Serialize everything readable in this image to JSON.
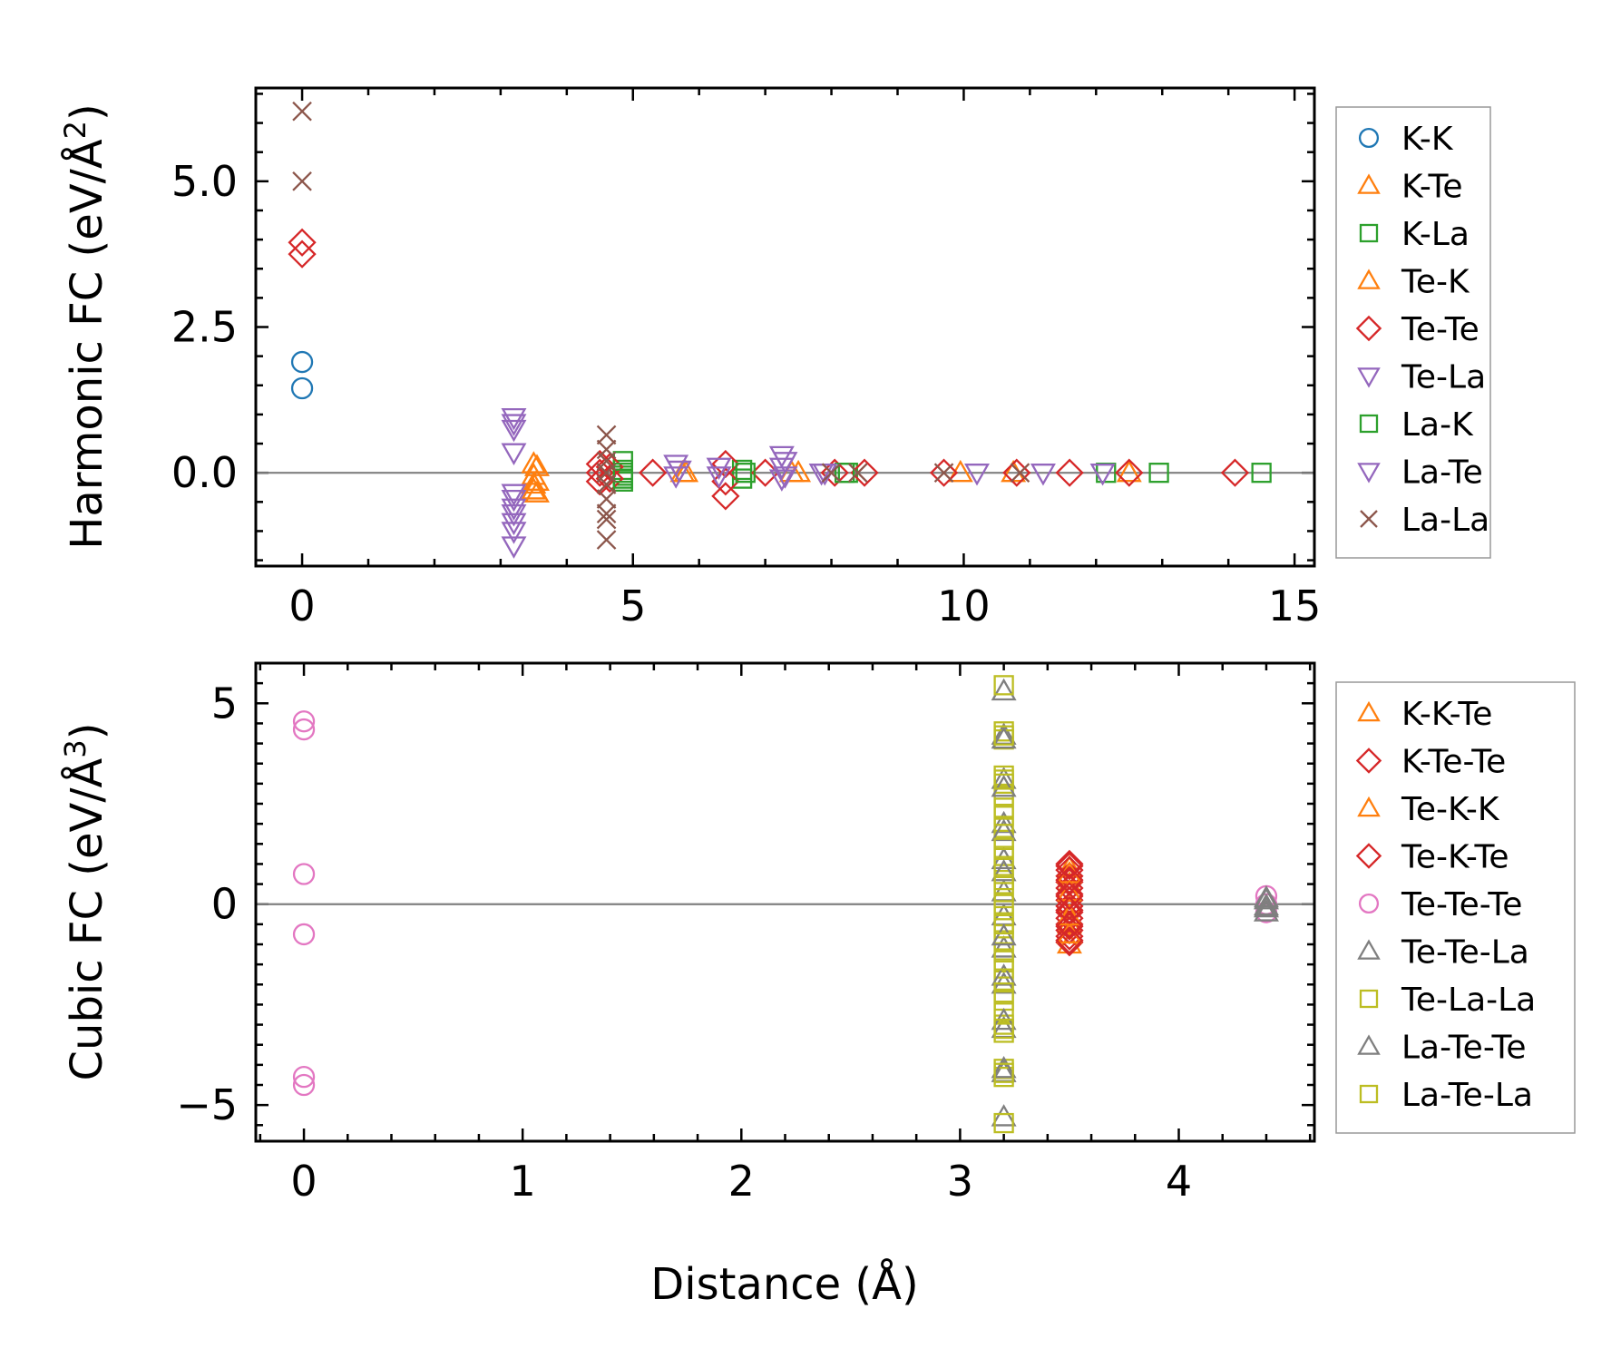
{
  "figure": {
    "width": 1787,
    "height": 1497
  },
  "chart_data": [
    {
      "type": "scatter",
      "title": "",
      "xlabel": "",
      "ylabel": "Harmonic FC (eV/Å²)",
      "ylabel_parts": [
        "Harmonic FC (eV/Å",
        "2",
        ")"
      ],
      "xlim": [
        -0.7,
        15.3
      ],
      "ylim": [
        -1.6,
        6.6
      ],
      "xticks": [
        0,
        5,
        10,
        15
      ],
      "xtick_labels": [
        "0",
        "5",
        "10",
        "15"
      ],
      "yticks": [
        0.0,
        2.5,
        5.0
      ],
      "ytick_labels": [
        "0.0",
        "2.5",
        "5.0"
      ],
      "hline": 0,
      "legend": "outside-right",
      "series": [
        {
          "name": "K-K",
          "marker": "circle",
          "color": "#1f77b4",
          "points": [
            [
              0,
              1.9
            ],
            [
              0,
              1.45
            ]
          ]
        },
        {
          "name": "K-Te",
          "marker": "triangle-up",
          "color": "#ff7f0e",
          "points": [
            [
              3.5,
              0.15
            ],
            [
              3.5,
              -0.05
            ],
            [
              3.5,
              -0.2
            ],
            [
              3.5,
              -0.3
            ],
            [
              5.8,
              0.0
            ],
            [
              7.4,
              0.0
            ],
            [
              9.95,
              0.0
            ],
            [
              12.5,
              0.0
            ]
          ]
        },
        {
          "name": "K-La",
          "marker": "square",
          "color": "#2ca02c",
          "points": [
            [
              4.85,
              0.2
            ],
            [
              4.85,
              0.05
            ],
            [
              4.85,
              -0.05
            ],
            [
              4.85,
              -0.15
            ],
            [
              6.65,
              0.05
            ],
            [
              6.65,
              -0.1
            ],
            [
              8.25,
              0.0
            ],
            [
              12.15,
              0.0
            ],
            [
              12.95,
              0.0
            ],
            [
              14.5,
              0.0
            ]
          ]
        },
        {
          "name": "Te-K",
          "marker": "triangle-up",
          "color": "#ff7f0e",
          "points": [
            [
              3.55,
              0.1
            ],
            [
              3.55,
              -0.15
            ],
            [
              3.55,
              -0.35
            ],
            [
              5.75,
              0.0
            ],
            [
              7.5,
              0.0
            ],
            [
              10.75,
              0.0
            ]
          ]
        },
        {
          "name": "Te-Te",
          "marker": "diamond",
          "color": "#d62728",
          "points": [
            [
              0,
              3.95
            ],
            [
              0,
              3.75
            ],
            [
              4.5,
              0.15
            ],
            [
              4.5,
              0.0
            ],
            [
              4.5,
              -0.15
            ],
            [
              4.65,
              0.1
            ],
            [
              4.65,
              -0.1
            ],
            [
              5.3,
              0.0
            ],
            [
              6.4,
              0.15
            ],
            [
              6.4,
              -0.15
            ],
            [
              6.4,
              -0.4
            ],
            [
              7.0,
              0.0
            ],
            [
              8.05,
              0.0
            ],
            [
              8.5,
              0.0
            ],
            [
              9.7,
              0.0
            ],
            [
              10.8,
              0.0
            ],
            [
              11.6,
              0.0
            ],
            [
              12.5,
              0.0
            ],
            [
              14.1,
              0.0
            ]
          ]
        },
        {
          "name": "Te-La",
          "marker": "triangle-down",
          "color": "#9467bd",
          "points": [
            [
              3.2,
              0.95
            ],
            [
              3.2,
              0.75
            ],
            [
              3.2,
              0.35
            ],
            [
              3.2,
              -0.35
            ],
            [
              3.2,
              -0.6
            ],
            [
              3.2,
              -0.85
            ],
            [
              3.2,
              -1.0
            ],
            [
              3.2,
              -1.25
            ],
            [
              5.65,
              0.15
            ],
            [
              5.65,
              -0.05
            ],
            [
              6.3,
              0.1
            ],
            [
              6.3,
              -0.05
            ],
            [
              7.25,
              0.3
            ],
            [
              7.25,
              0.1
            ],
            [
              7.25,
              -0.1
            ],
            [
              7.85,
              0.0
            ],
            [
              10.2,
              0.0
            ],
            [
              11.2,
              0.0
            ],
            [
              12.1,
              0.0
            ]
          ]
        },
        {
          "name": "La-K",
          "marker": "square",
          "color": "#2ca02c",
          "points": [
            [
              4.85,
              0.0
            ],
            [
              4.85,
              -0.1
            ],
            [
              6.7,
              0.0
            ],
            [
              8.2,
              0.0
            ]
          ]
        },
        {
          "name": "La-Te",
          "marker": "triangle-down",
          "color": "#9467bd",
          "points": [
            [
              3.2,
              0.85
            ],
            [
              3.2,
              -0.45
            ],
            [
              3.2,
              -0.7
            ],
            [
              5.7,
              0.05
            ],
            [
              7.3,
              0.2
            ],
            [
              7.3,
              -0.05
            ],
            [
              7.9,
              0.0
            ]
          ]
        },
        {
          "name": "La-La",
          "marker": "x",
          "color": "#8c564b",
          "points": [
            [
              0,
              6.2
            ],
            [
              0,
              5.0
            ],
            [
              4.6,
              0.65
            ],
            [
              4.6,
              0.4
            ],
            [
              4.6,
              0.2
            ],
            [
              4.6,
              0.0
            ],
            [
              4.6,
              -0.2
            ],
            [
              4.6,
              -0.45
            ],
            [
              4.6,
              -0.7
            ],
            [
              4.6,
              -0.8
            ],
            [
              4.6,
              -1.15
            ],
            [
              8.0,
              0.0
            ],
            [
              8.4,
              0.0
            ],
            [
              9.7,
              0.0
            ],
            [
              10.85,
              0.0
            ]
          ]
        }
      ]
    },
    {
      "type": "scatter",
      "title": "",
      "xlabel": "Distance (Å)",
      "ylabel": "Cubic FC (eV/Å³)",
      "ylabel_parts": [
        "Cubic FC (eV/Å",
        "3",
        ")"
      ],
      "xlim": [
        -0.22,
        4.62
      ],
      "ylim": [
        -5.9,
        6.0
      ],
      "xticks": [
        0,
        1,
        2,
        3,
        4
      ],
      "xtick_labels": [
        "0",
        "1",
        "2",
        "3",
        "4"
      ],
      "yticks": [
        -5,
        0,
        5
      ],
      "ytick_labels": [
        "−5",
        "0",
        "5"
      ],
      "hline": 0,
      "legend": "outside-right",
      "series": [
        {
          "name": "K-K-Te",
          "marker": "triangle-up",
          "color": "#ff7f0e",
          "points": [
            [
              3.5,
              0.9
            ],
            [
              3.5,
              0.5
            ],
            [
              3.5,
              0.0
            ],
            [
              3.5,
              -0.5
            ],
            [
              3.5,
              -1.0
            ]
          ]
        },
        {
          "name": "K-Te-Te",
          "marker": "diamond",
          "color": "#d62728",
          "points": [
            [
              3.5,
              1.0
            ],
            [
              3.5,
              0.85
            ],
            [
              3.5,
              0.7
            ],
            [
              3.5,
              0.55
            ],
            [
              3.5,
              0.4
            ],
            [
              3.5,
              0.25
            ],
            [
              3.5,
              0.1
            ],
            [
              3.5,
              -0.05
            ],
            [
              3.5,
              -0.2
            ],
            [
              3.5,
              -0.35
            ],
            [
              3.5,
              -0.5
            ],
            [
              3.5,
              -0.65
            ],
            [
              3.5,
              -0.8
            ],
            [
              3.5,
              -0.95
            ]
          ]
        },
        {
          "name": "Te-K-K",
          "marker": "triangle-up",
          "color": "#ff7f0e",
          "points": [
            [
              3.5,
              0.75
            ],
            [
              3.5,
              0.3
            ],
            [
              3.5,
              -0.3
            ],
            [
              3.5,
              -0.75
            ]
          ]
        },
        {
          "name": "Te-K-Te",
          "marker": "diamond",
          "color": "#d62728",
          "points": [
            [
              3.5,
              0.95
            ],
            [
              3.5,
              0.6
            ],
            [
              3.5,
              0.2
            ],
            [
              3.5,
              -0.15
            ],
            [
              3.5,
              -0.55
            ],
            [
              3.5,
              -0.9
            ]
          ]
        },
        {
          "name": "Te-Te-Te",
          "marker": "circle",
          "color": "#e377c2",
          "points": [
            [
              0,
              4.55
            ],
            [
              0,
              4.35
            ],
            [
              0,
              0.75
            ],
            [
              0,
              -0.75
            ],
            [
              0,
              -4.3
            ],
            [
              0,
              -4.5
            ],
            [
              4.4,
              0.2
            ],
            [
              4.4,
              0.0
            ],
            [
              4.4,
              -0.2
            ]
          ]
        },
        {
          "name": "Te-Te-La",
          "marker": "triangle-up",
          "color": "#7f7f7f",
          "points": [
            [
              3.2,
              5.3
            ],
            [
              3.2,
              4.2
            ],
            [
              3.2,
              3.1
            ],
            [
              3.2,
              2.0
            ],
            [
              3.2,
              1.1
            ],
            [
              3.2,
              0.3
            ],
            [
              3.2,
              -0.3
            ],
            [
              3.2,
              -1.1
            ],
            [
              3.2,
              -2.0
            ],
            [
              3.2,
              -3.1
            ],
            [
              3.2,
              -4.2
            ],
            [
              3.2,
              -5.3
            ],
            [
              4.4,
              0.1
            ],
            [
              4.4,
              -0.1
            ]
          ]
        },
        {
          "name": "Te-La-La",
          "marker": "square",
          "color": "#bcbd22",
          "points": [
            [
              3.2,
              5.45
            ],
            [
              3.2,
              4.3
            ],
            [
              3.2,
              4.1
            ],
            [
              3.2,
              3.2
            ],
            [
              3.2,
              3.0
            ],
            [
              3.2,
              2.7
            ],
            [
              3.2,
              2.4
            ],
            [
              3.2,
              1.9
            ],
            [
              3.2,
              1.6
            ],
            [
              3.2,
              1.2
            ],
            [
              3.2,
              0.9
            ],
            [
              3.2,
              0.6
            ],
            [
              3.2,
              0.3
            ],
            [
              3.2,
              0.0
            ],
            [
              3.2,
              -0.3
            ],
            [
              3.2,
              -0.6
            ],
            [
              3.2,
              -0.9
            ],
            [
              3.2,
              -1.2
            ],
            [
              3.2,
              -1.6
            ],
            [
              3.2,
              -1.9
            ],
            [
              3.2,
              -2.4
            ],
            [
              3.2,
              -2.7
            ],
            [
              3.2,
              -3.0
            ],
            [
              3.2,
              -3.2
            ],
            [
              3.2,
              -4.1
            ],
            [
              3.2,
              -4.3
            ],
            [
              3.2,
              -5.45
            ]
          ]
        },
        {
          "name": "La-Te-Te",
          "marker": "triangle-up",
          "color": "#7f7f7f",
          "points": [
            [
              3.2,
              4.1
            ],
            [
              3.2,
              2.9
            ],
            [
              3.2,
              1.8
            ],
            [
              3.2,
              0.8
            ],
            [
              3.2,
              -0.8
            ],
            [
              3.2,
              -1.8
            ],
            [
              3.2,
              -2.9
            ],
            [
              3.2,
              -4.1
            ],
            [
              4.4,
              0.15
            ],
            [
              4.4,
              -0.05
            ],
            [
              4.4,
              -0.2
            ]
          ]
        },
        {
          "name": "La-Te-La",
          "marker": "square",
          "color": "#bcbd22",
          "points": [
            [
              3.2,
              4.2
            ],
            [
              3.2,
              3.1
            ],
            [
              3.2,
              2.2
            ],
            [
              3.2,
              1.4
            ],
            [
              3.2,
              0.5
            ],
            [
              3.2,
              -0.5
            ],
            [
              3.2,
              -1.4
            ],
            [
              3.2,
              -2.2
            ],
            [
              3.2,
              -3.1
            ],
            [
              3.2,
              -4.2
            ]
          ]
        }
      ]
    }
  ]
}
